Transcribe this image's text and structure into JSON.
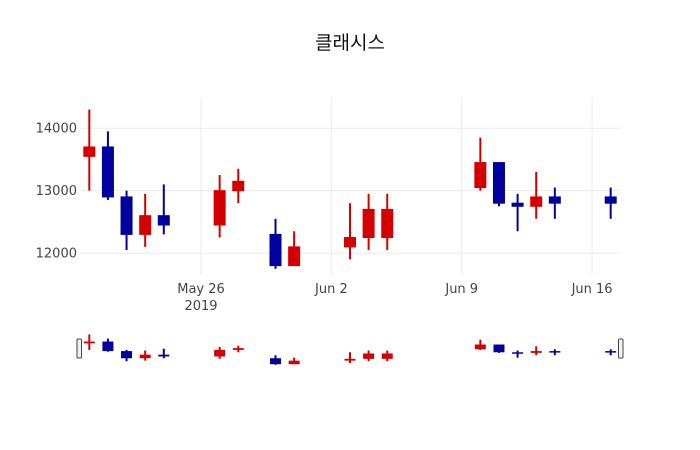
{
  "chart_data": {
    "type": "candlestick",
    "title": "클래시스",
    "xlabel": "",
    "ylabel": "",
    "increasing_color": "#d40000",
    "decreasing_color": "#00009c",
    "grid": true,
    "legend": "none",
    "ylim": [
      11650,
      14500
    ],
    "xlim": [
      "2019-05-19T12:00",
      "2019-06-17T12:00"
    ],
    "y_ticks": [
      12000,
      13000,
      14000
    ],
    "y_tick_labels": [
      "12000",
      "13000",
      "14000"
    ],
    "x_ticks": [
      "2019-05-26",
      "2019-06-02",
      "2019-06-09",
      "2019-06-16"
    ],
    "x_tick_labels": [
      "May 26\n2019",
      "Jun 2",
      "Jun 9",
      "Jun 16"
    ],
    "rangeslider": true,
    "candles": [
      {
        "date": "2019-05-20",
        "open": 13550,
        "high": 14300,
        "low": 13000,
        "close": 13700
      },
      {
        "date": "2019-05-21",
        "open": 13700,
        "high": 13950,
        "low": 12850,
        "close": 12900
      },
      {
        "date": "2019-05-22",
        "open": 12900,
        "high": 13000,
        "low": 12050,
        "close": 12300
      },
      {
        "date": "2019-05-23",
        "open": 12300,
        "high": 12950,
        "low": 12100,
        "close": 12600
      },
      {
        "date": "2019-05-24",
        "open": 12600,
        "high": 13100,
        "low": 12300,
        "close": 12450
      },
      {
        "date": "2019-05-27",
        "open": 12450,
        "high": 13250,
        "low": 12250,
        "close": 13000
      },
      {
        "date": "2019-05-28",
        "open": 13000,
        "high": 13350,
        "low": 12800,
        "close": 13150
      },
      {
        "date": "2019-05-30",
        "open": 12300,
        "high": 12550,
        "low": 11750,
        "close": 11800
      },
      {
        "date": "2019-05-31",
        "open": 11800,
        "high": 12350,
        "low": 11800,
        "close": 12100
      },
      {
        "date": "2019-06-03",
        "open": 12100,
        "high": 12800,
        "low": 11900,
        "close": 12250
      },
      {
        "date": "2019-06-04",
        "open": 12250,
        "high": 12950,
        "low": 12050,
        "close": 12700
      },
      {
        "date": "2019-06-05",
        "open": 12250,
        "high": 12950,
        "low": 12050,
        "close": 12700
      },
      {
        "date": "2019-06-10",
        "open": 13050,
        "high": 13850,
        "low": 13000,
        "close": 13450
      },
      {
        "date": "2019-06-11",
        "open": 13450,
        "high": 13450,
        "low": 12750,
        "close": 12800
      },
      {
        "date": "2019-06-12",
        "open": 12800,
        "high": 12950,
        "low": 12350,
        "close": 12750
      },
      {
        "date": "2019-06-13",
        "open": 12750,
        "high": 13300,
        "low": 12550,
        "close": 12900
      },
      {
        "date": "2019-06-14",
        "open": 12900,
        "high": 13050,
        "low": 12550,
        "close": 12800
      },
      {
        "date": "2019-06-17",
        "open": 12900,
        "high": 13050,
        "low": 12550,
        "close": 12800
      }
    ]
  }
}
